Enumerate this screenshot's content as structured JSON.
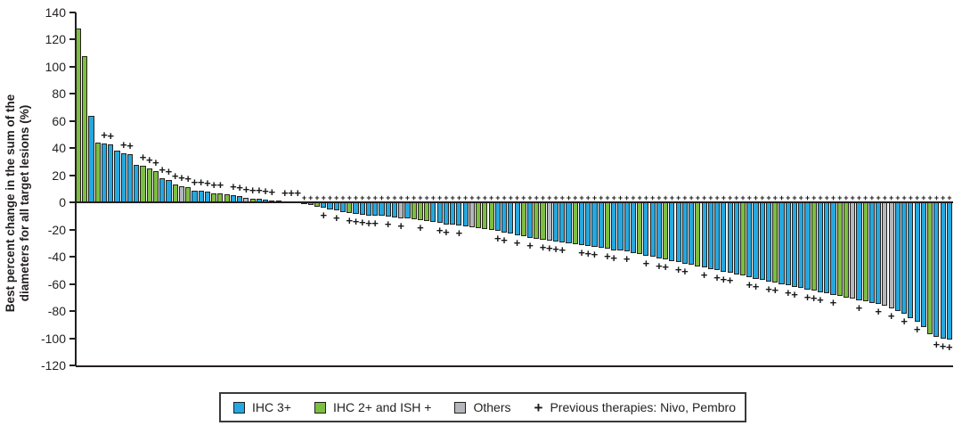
{
  "chart_data": {
    "type": "bar",
    "subtype": "waterfall",
    "title": "",
    "ylabel_line1": "Best percent change in the sum of the",
    "ylabel_line2": "diameters for all target lesions (%)",
    "ylim": [
      -120,
      140
    ],
    "yticks": [
      140,
      120,
      100,
      80,
      60,
      40,
      20,
      0,
      -20,
      -40,
      -60,
      -80,
      -100,
      -120
    ],
    "grid": false,
    "legend_position": "bottom",
    "colors": {
      "ihc3": "#25a8df",
      "ihc2ish": "#7cbe41",
      "others": "#b3b7bb",
      "outline": "#26221f",
      "marker": "#1a1a1a"
    },
    "color_codes": {
      "b": "ihc3",
      "g": "ihc2ish",
      "o": "others"
    },
    "legend": {
      "ihc3_label": "IHC 3+",
      "ihc2ish_label": "IHC 2+ and ISH +",
      "others_label": "Others",
      "marker_symbol": "+",
      "marker_label": "Previous therapies: Nivo, Pembro"
    },
    "bars_format": "[value_percent, color_code, prev_therapy_marker]",
    "bars": [
      [
        128,
        "g",
        0
      ],
      [
        108,
        "g",
        0
      ],
      [
        64,
        "b",
        0
      ],
      [
        44,
        "g",
        0
      ],
      [
        43.5,
        "b",
        1
      ],
      [
        43,
        "b",
        1
      ],
      [
        38,
        "b",
        0
      ],
      [
        36.5,
        "b",
        1
      ],
      [
        35.5,
        "b",
        1
      ],
      [
        27.5,
        "b",
        0
      ],
      [
        27,
        "g",
        1
      ],
      [
        25,
        "g",
        1
      ],
      [
        23,
        "g",
        1
      ],
      [
        18,
        "b",
        1
      ],
      [
        16.5,
        "b",
        1
      ],
      [
        13.5,
        "g",
        1
      ],
      [
        12,
        "o",
        1
      ],
      [
        11,
        "g",
        1
      ],
      [
        9,
        "b",
        1
      ],
      [
        8.5,
        "b",
        1
      ],
      [
        8,
        "b",
        1
      ],
      [
        7,
        "g",
        1
      ],
      [
        6.5,
        "g",
        1
      ],
      [
        6,
        "g",
        0
      ],
      [
        5.5,
        "b",
        1
      ],
      [
        5,
        "b",
        1
      ],
      [
        3.5,
        "o",
        1
      ],
      [
        3,
        "g",
        1
      ],
      [
        2.5,
        "b",
        1
      ],
      [
        2,
        "b",
        1
      ],
      [
        1.5,
        "g",
        1
      ],
      [
        1.5,
        "b",
        0
      ],
      [
        1,
        "g",
        1
      ],
      [
        1,
        "b",
        1
      ],
      [
        0.5,
        "b",
        1
      ],
      [
        -1,
        "b",
        0
      ],
      [
        -2,
        "b",
        0
      ],
      [
        -3,
        "g",
        0
      ],
      [
        -4,
        "b",
        1
      ],
      [
        -5,
        "b",
        0
      ],
      [
        -6,
        "b",
        1
      ],
      [
        -7,
        "b",
        0
      ],
      [
        -8,
        "g",
        1
      ],
      [
        -8.5,
        "b",
        1
      ],
      [
        -9,
        "b",
        1
      ],
      [
        -9.5,
        "b",
        1
      ],
      [
        -10,
        "b",
        1
      ],
      [
        -10,
        "b",
        0
      ],
      [
        -10.5,
        "b",
        1
      ],
      [
        -11,
        "b",
        0
      ],
      [
        -11.5,
        "o",
        1
      ],
      [
        -12,
        "b",
        0
      ],
      [
        -12.5,
        "g",
        0
      ],
      [
        -13,
        "g",
        1
      ],
      [
        -13.5,
        "g",
        0
      ],
      [
        -14,
        "b",
        0
      ],
      [
        -15,
        "b",
        1
      ],
      [
        -16,
        "b",
        1
      ],
      [
        -16.5,
        "b",
        0
      ],
      [
        -17,
        "b",
        1
      ],
      [
        -17.5,
        "b",
        0
      ],
      [
        -18,
        "o",
        0
      ],
      [
        -19,
        "g",
        0
      ],
      [
        -19.5,
        "g",
        0
      ],
      [
        -20,
        "g",
        0
      ],
      [
        -21,
        "b",
        1
      ],
      [
        -22,
        "b",
        1
      ],
      [
        -23,
        "b",
        0
      ],
      [
        -24,
        "b",
        1
      ],
      [
        -25,
        "g",
        0
      ],
      [
        -26,
        "b",
        1
      ],
      [
        -27,
        "g",
        0
      ],
      [
        -27.5,
        "g",
        1
      ],
      [
        -28,
        "o",
        1
      ],
      [
        -29,
        "b",
        1
      ],
      [
        -29.5,
        "b",
        1
      ],
      [
        -30,
        "b",
        0
      ],
      [
        -31,
        "g",
        0
      ],
      [
        -31.5,
        "b",
        1
      ],
      [
        -32,
        "b",
        1
      ],
      [
        -33,
        "b",
        1
      ],
      [
        -33.5,
        "b",
        0
      ],
      [
        -34,
        "g",
        1
      ],
      [
        -35,
        "b",
        1
      ],
      [
        -35.5,
        "b",
        0
      ],
      [
        -36,
        "b",
        1
      ],
      [
        -37,
        "b",
        0
      ],
      [
        -38,
        "g",
        0
      ],
      [
        -39,
        "b",
        1
      ],
      [
        -40,
        "b",
        0
      ],
      [
        -41,
        "b",
        1
      ],
      [
        -42,
        "g",
        1
      ],
      [
        -43,
        "b",
        0
      ],
      [
        -44,
        "b",
        1
      ],
      [
        -45,
        "b",
        1
      ],
      [
        -46,
        "b",
        0
      ],
      [
        -47,
        "g",
        0
      ],
      [
        -48,
        "b",
        1
      ],
      [
        -49,
        "b",
        0
      ],
      [
        -50,
        "b",
        1
      ],
      [
        -51,
        "b",
        1
      ],
      [
        -52,
        "b",
        1
      ],
      [
        -53,
        "b",
        0
      ],
      [
        -54,
        "g",
        0
      ],
      [
        -55,
        "b",
        1
      ],
      [
        -56,
        "b",
        1
      ],
      [
        -57,
        "b",
        0
      ],
      [
        -58,
        "b",
        1
      ],
      [
        -59,
        "g",
        1
      ],
      [
        -60,
        "b",
        0
      ],
      [
        -61,
        "b",
        1
      ],
      [
        -62,
        "b",
        1
      ],
      [
        -63,
        "b",
        0
      ],
      [
        -64,
        "b",
        1
      ],
      [
        -65,
        "g",
        1
      ],
      [
        -66,
        "b",
        1
      ],
      [
        -67,
        "b",
        0
      ],
      [
        -68,
        "b",
        1
      ],
      [
        -69,
        "g",
        0
      ],
      [
        -70,
        "g",
        0
      ],
      [
        -71,
        "o",
        0
      ],
      [
        -72,
        "b",
        1
      ],
      [
        -73,
        "g",
        0
      ],
      [
        -74,
        "b",
        0
      ],
      [
        -75,
        "b",
        1
      ],
      [
        -76,
        "o",
        0
      ],
      [
        -78,
        "o",
        1
      ],
      [
        -80,
        "b",
        0
      ],
      [
        -82,
        "b",
        1
      ],
      [
        -85,
        "b",
        0
      ],
      [
        -88,
        "b",
        1
      ],
      [
        -92,
        "b",
        0
      ],
      [
        -97,
        "g",
        0
      ],
      [
        -99,
        "b",
        1
      ],
      [
        -100,
        "b",
        1
      ],
      [
        -101,
        "b",
        1
      ]
    ]
  }
}
